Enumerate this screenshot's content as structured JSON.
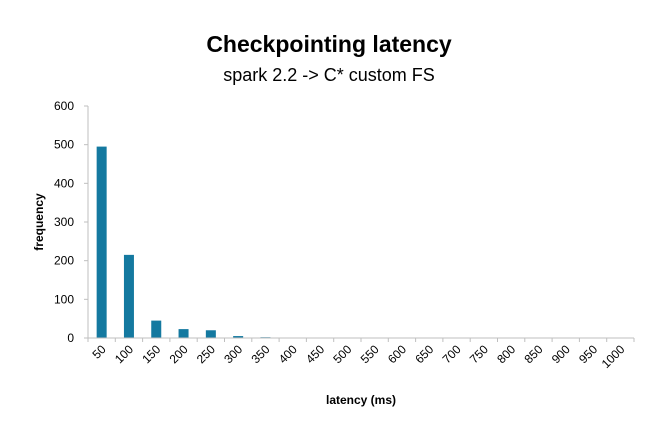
{
  "chart_data": {
    "type": "bar",
    "title": "Checkpointing latency",
    "subtitle": "spark 2.2 -> C* custom FS",
    "xlabel": "latency (ms)",
    "ylabel": "frequency",
    "categories": [
      "50",
      "100",
      "150",
      "200",
      "250",
      "300",
      "350",
      "400",
      "450",
      "500",
      "550",
      "600",
      "650",
      "700",
      "750",
      "800",
      "850",
      "900",
      "950",
      "1000"
    ],
    "series": [
      {
        "values": [
          495,
          215,
          45,
          23,
          20,
          5,
          2,
          0,
          0,
          0,
          0,
          0,
          0,
          0,
          0,
          0,
          0,
          0,
          0,
          0
        ]
      }
    ],
    "ylim": [
      0,
      600
    ],
    "yticks": [
      "0",
      "100",
      "200",
      "300",
      "400",
      "500",
      "600"
    ],
    "grid": false,
    "legend": "none",
    "bar_color": "#1479A0",
    "axis_color": "#BFBFBF"
  }
}
